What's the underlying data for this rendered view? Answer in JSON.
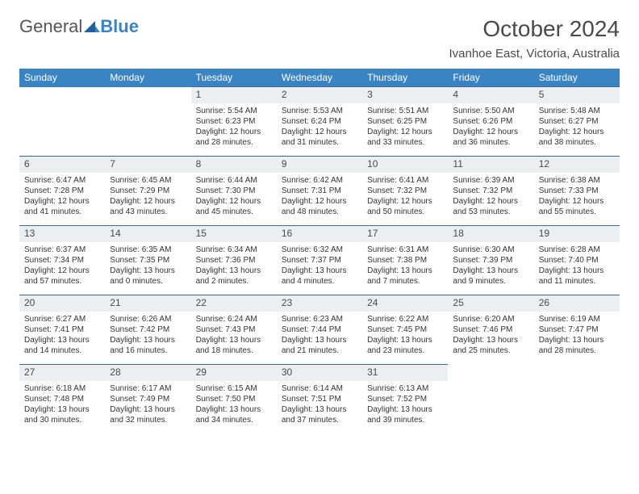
{
  "brand": {
    "word1": "General",
    "word2": "Blue"
  },
  "title": "October 2024",
  "location": "Ivanhoe East, Victoria, Australia",
  "colors": {
    "header_bg": "#3a84c4",
    "header_border": "#3a6a9a",
    "daynum_bg": "#eceef0",
    "page_bg": "#ffffff",
    "text": "#333333",
    "brand_blue": "#3a84c4",
    "brand_grey": "#555555"
  },
  "day_headers": [
    "Sunday",
    "Monday",
    "Tuesday",
    "Wednesday",
    "Thursday",
    "Friday",
    "Saturday"
  ],
  "weeks": [
    {
      "nums": [
        "",
        "",
        "1",
        "2",
        "3",
        "4",
        "5"
      ],
      "cells": [
        null,
        null,
        {
          "sunrise": "Sunrise: 5:54 AM",
          "sunset": "Sunset: 6:23 PM",
          "day1": "Daylight: 12 hours",
          "day2": "and 28 minutes."
        },
        {
          "sunrise": "Sunrise: 5:53 AM",
          "sunset": "Sunset: 6:24 PM",
          "day1": "Daylight: 12 hours",
          "day2": "and 31 minutes."
        },
        {
          "sunrise": "Sunrise: 5:51 AM",
          "sunset": "Sunset: 6:25 PM",
          "day1": "Daylight: 12 hours",
          "day2": "and 33 minutes."
        },
        {
          "sunrise": "Sunrise: 5:50 AM",
          "sunset": "Sunset: 6:26 PM",
          "day1": "Daylight: 12 hours",
          "day2": "and 36 minutes."
        },
        {
          "sunrise": "Sunrise: 5:48 AM",
          "sunset": "Sunset: 6:27 PM",
          "day1": "Daylight: 12 hours",
          "day2": "and 38 minutes."
        }
      ]
    },
    {
      "nums": [
        "6",
        "7",
        "8",
        "9",
        "10",
        "11",
        "12"
      ],
      "cells": [
        {
          "sunrise": "Sunrise: 6:47 AM",
          "sunset": "Sunset: 7:28 PM",
          "day1": "Daylight: 12 hours",
          "day2": "and 41 minutes."
        },
        {
          "sunrise": "Sunrise: 6:45 AM",
          "sunset": "Sunset: 7:29 PM",
          "day1": "Daylight: 12 hours",
          "day2": "and 43 minutes."
        },
        {
          "sunrise": "Sunrise: 6:44 AM",
          "sunset": "Sunset: 7:30 PM",
          "day1": "Daylight: 12 hours",
          "day2": "and 45 minutes."
        },
        {
          "sunrise": "Sunrise: 6:42 AM",
          "sunset": "Sunset: 7:31 PM",
          "day1": "Daylight: 12 hours",
          "day2": "and 48 minutes."
        },
        {
          "sunrise": "Sunrise: 6:41 AM",
          "sunset": "Sunset: 7:32 PM",
          "day1": "Daylight: 12 hours",
          "day2": "and 50 minutes."
        },
        {
          "sunrise": "Sunrise: 6:39 AM",
          "sunset": "Sunset: 7:32 PM",
          "day1": "Daylight: 12 hours",
          "day2": "and 53 minutes."
        },
        {
          "sunrise": "Sunrise: 6:38 AM",
          "sunset": "Sunset: 7:33 PM",
          "day1": "Daylight: 12 hours",
          "day2": "and 55 minutes."
        }
      ]
    },
    {
      "nums": [
        "13",
        "14",
        "15",
        "16",
        "17",
        "18",
        "19"
      ],
      "cells": [
        {
          "sunrise": "Sunrise: 6:37 AM",
          "sunset": "Sunset: 7:34 PM",
          "day1": "Daylight: 12 hours",
          "day2": "and 57 minutes."
        },
        {
          "sunrise": "Sunrise: 6:35 AM",
          "sunset": "Sunset: 7:35 PM",
          "day1": "Daylight: 13 hours",
          "day2": "and 0 minutes."
        },
        {
          "sunrise": "Sunrise: 6:34 AM",
          "sunset": "Sunset: 7:36 PM",
          "day1": "Daylight: 13 hours",
          "day2": "and 2 minutes."
        },
        {
          "sunrise": "Sunrise: 6:32 AM",
          "sunset": "Sunset: 7:37 PM",
          "day1": "Daylight: 13 hours",
          "day2": "and 4 minutes."
        },
        {
          "sunrise": "Sunrise: 6:31 AM",
          "sunset": "Sunset: 7:38 PM",
          "day1": "Daylight: 13 hours",
          "day2": "and 7 minutes."
        },
        {
          "sunrise": "Sunrise: 6:30 AM",
          "sunset": "Sunset: 7:39 PM",
          "day1": "Daylight: 13 hours",
          "day2": "and 9 minutes."
        },
        {
          "sunrise": "Sunrise: 6:28 AM",
          "sunset": "Sunset: 7:40 PM",
          "day1": "Daylight: 13 hours",
          "day2": "and 11 minutes."
        }
      ]
    },
    {
      "nums": [
        "20",
        "21",
        "22",
        "23",
        "24",
        "25",
        "26"
      ],
      "cells": [
        {
          "sunrise": "Sunrise: 6:27 AM",
          "sunset": "Sunset: 7:41 PM",
          "day1": "Daylight: 13 hours",
          "day2": "and 14 minutes."
        },
        {
          "sunrise": "Sunrise: 6:26 AM",
          "sunset": "Sunset: 7:42 PM",
          "day1": "Daylight: 13 hours",
          "day2": "and 16 minutes."
        },
        {
          "sunrise": "Sunrise: 6:24 AM",
          "sunset": "Sunset: 7:43 PM",
          "day1": "Daylight: 13 hours",
          "day2": "and 18 minutes."
        },
        {
          "sunrise": "Sunrise: 6:23 AM",
          "sunset": "Sunset: 7:44 PM",
          "day1": "Daylight: 13 hours",
          "day2": "and 21 minutes."
        },
        {
          "sunrise": "Sunrise: 6:22 AM",
          "sunset": "Sunset: 7:45 PM",
          "day1": "Daylight: 13 hours",
          "day2": "and 23 minutes."
        },
        {
          "sunrise": "Sunrise: 6:20 AM",
          "sunset": "Sunset: 7:46 PM",
          "day1": "Daylight: 13 hours",
          "day2": "and 25 minutes."
        },
        {
          "sunrise": "Sunrise: 6:19 AM",
          "sunset": "Sunset: 7:47 PM",
          "day1": "Daylight: 13 hours",
          "day2": "and 28 minutes."
        }
      ]
    },
    {
      "nums": [
        "27",
        "28",
        "29",
        "30",
        "31",
        "",
        ""
      ],
      "cells": [
        {
          "sunrise": "Sunrise: 6:18 AM",
          "sunset": "Sunset: 7:48 PM",
          "day1": "Daylight: 13 hours",
          "day2": "and 30 minutes."
        },
        {
          "sunrise": "Sunrise: 6:17 AM",
          "sunset": "Sunset: 7:49 PM",
          "day1": "Daylight: 13 hours",
          "day2": "and 32 minutes."
        },
        {
          "sunrise": "Sunrise: 6:15 AM",
          "sunset": "Sunset: 7:50 PM",
          "day1": "Daylight: 13 hours",
          "day2": "and 34 minutes."
        },
        {
          "sunrise": "Sunrise: 6:14 AM",
          "sunset": "Sunset: 7:51 PM",
          "day1": "Daylight: 13 hours",
          "day2": "and 37 minutes."
        },
        {
          "sunrise": "Sunrise: 6:13 AM",
          "sunset": "Sunset: 7:52 PM",
          "day1": "Daylight: 13 hours",
          "day2": "and 39 minutes."
        },
        null,
        null
      ]
    }
  ]
}
